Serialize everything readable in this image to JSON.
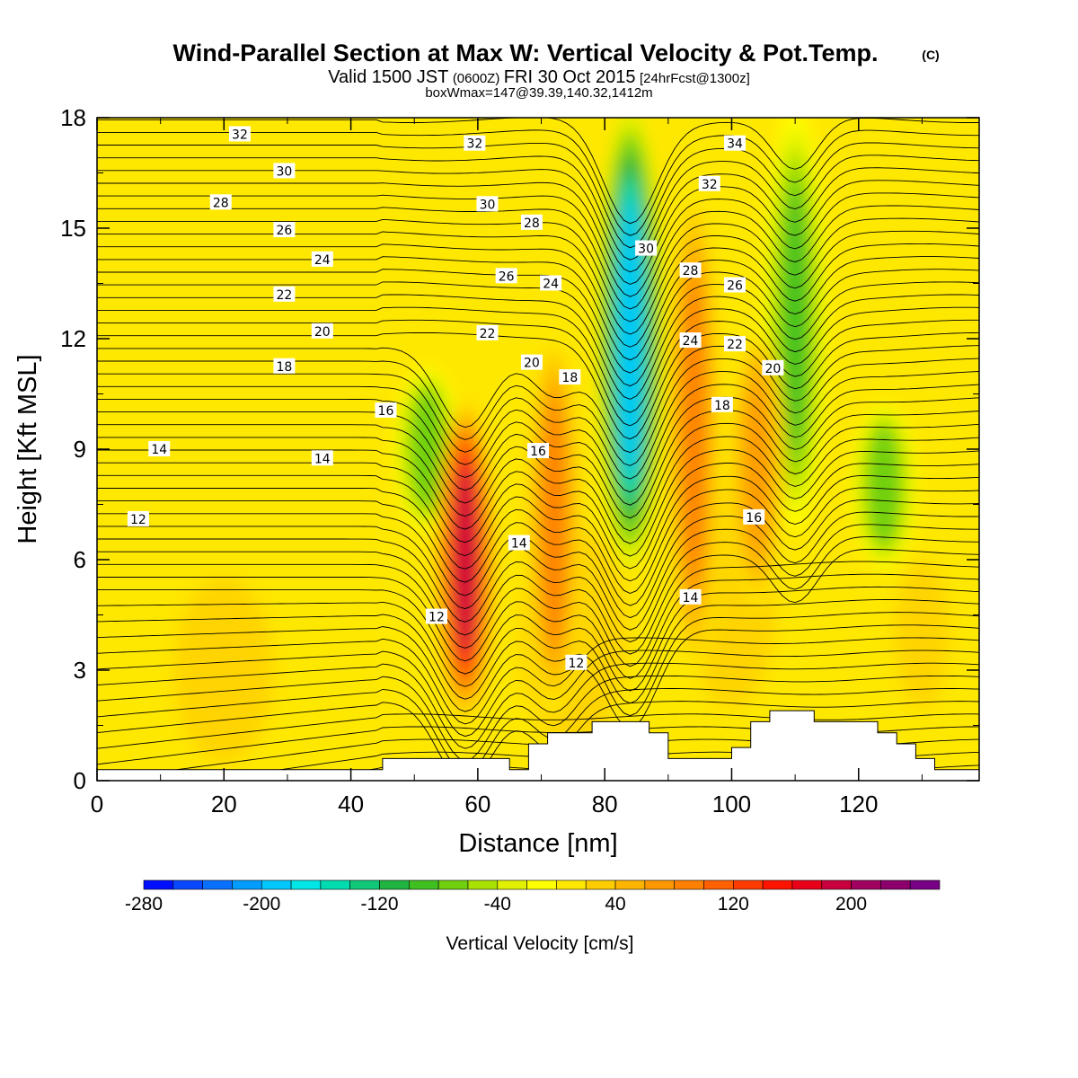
{
  "header": {
    "title": "Wind-Parallel Section at Max W: Vertical Velocity & Pot.Temp.",
    "copyright": "(C)",
    "valid_prefix": "Valid 1500 JST",
    "valid_zulu": "(0600Z)",
    "valid_date": "FRI 30 Oct 2015",
    "forecast": "[24hrFcst@1300z]",
    "box_info": "boxWmax=147@39.39,140.32,1412m"
  },
  "chart_data": {
    "type": "heatmap",
    "title": "Wind-Parallel Section at Max W: Vertical Velocity & Pot.Temp.",
    "xlabel": "Distance [nm]",
    "ylabel": "Height [Kft MSL]",
    "xlim": [
      0,
      139
    ],
    "ylim": [
      0,
      18
    ],
    "x_ticks": [
      "0",
      "20",
      "40",
      "60",
      "80",
      "100",
      "120"
    ],
    "x_tick_values": [
      0,
      20,
      40,
      60,
      80,
      100,
      120
    ],
    "y_ticks": [
      "0",
      "3",
      "6",
      "9",
      "12",
      "15",
      "18"
    ],
    "y_tick_values": [
      0,
      3,
      6,
      9,
      12,
      15,
      18
    ],
    "colorbar": {
      "label": "Vertical Velocity [cm/s]",
      "min": -280,
      "max": 260,
      "step": 20,
      "tick_labels": [
        "-280",
        "-200",
        "-120",
        "-40",
        "40",
        "120",
        "200"
      ],
      "tick_values": [
        -280,
        -200,
        -120,
        -40,
        40,
        120,
        200
      ],
      "colors": [
        "#0010ff",
        "#0848ff",
        "#0a70ff",
        "#009cff",
        "#00c8ff",
        "#00e6e6",
        "#00dcb0",
        "#10c878",
        "#20b440",
        "#40c020",
        "#70d010",
        "#a8e000",
        "#e0f000",
        "#ffff00",
        "#ffe800",
        "#ffcc00",
        "#ffb400",
        "#ff9800",
        "#ff8000",
        "#ff6000",
        "#ff3c00",
        "#ff1400",
        "#e80018",
        "#c8003c",
        "#a00060",
        "#8c006c",
        "#780084"
      ]
    },
    "fields": {
      "shaded": "Vertical Velocity [cm/s]",
      "contours": "Potential Temperature"
    },
    "updraft_cores": [
      {
        "x": 58,
        "z_range": [
          2,
          10
        ],
        "max": 180
      },
      {
        "x": 72,
        "z_range": [
          2,
          12
        ],
        "max": 80
      },
      {
        "x": 94,
        "z_range": [
          3,
          16
        ],
        "max": 80
      },
      {
        "x": 104,
        "z_range": [
          5,
          12
        ],
        "max": 70
      }
    ],
    "downdraft_cores": [
      {
        "x": 52,
        "z_range": [
          7,
          11
        ],
        "min": -80
      },
      {
        "x": 84,
        "z_range": [
          6,
          18
        ],
        "min": -200
      },
      {
        "x": 110,
        "z_range": [
          7,
          18
        ],
        "min": -100
      },
      {
        "x": 124,
        "z_range": [
          6,
          10
        ],
        "min": -80
      }
    ],
    "contour_labels": [
      {
        "text": "32",
        "x": 22.5,
        "y": 17.55
      },
      {
        "text": "30",
        "x": 29.5,
        "y": 16.55
      },
      {
        "text": "28",
        "x": 19.5,
        "y": 15.7
      },
      {
        "text": "26",
        "x": 29.5,
        "y": 14.95
      },
      {
        "text": "24",
        "x": 35.5,
        "y": 14.15
      },
      {
        "text": "22",
        "x": 29.5,
        "y": 13.2
      },
      {
        "text": "20",
        "x": 35.5,
        "y": 12.2
      },
      {
        "text": "18",
        "x": 29.5,
        "y": 11.25
      },
      {
        "text": "16",
        "x": 45.5,
        "y": 10.05
      },
      {
        "text": "14",
        "x": 9.8,
        "y": 9.0
      },
      {
        "text": "14",
        "x": 35.5,
        "y": 8.75
      },
      {
        "text": "12",
        "x": 6.5,
        "y": 7.1
      },
      {
        "text": "32",
        "x": 59.5,
        "y": 17.3
      },
      {
        "text": "30",
        "x": 61.5,
        "y": 15.65
      },
      {
        "text": "28",
        "x": 68.5,
        "y": 15.15
      },
      {
        "text": "26",
        "x": 64.5,
        "y": 13.7
      },
      {
        "text": "24",
        "x": 71.5,
        "y": 13.5
      },
      {
        "text": "22",
        "x": 61.5,
        "y": 12.15
      },
      {
        "text": "20",
        "x": 68.5,
        "y": 11.35
      },
      {
        "text": "18",
        "x": 74.5,
        "y": 10.95
      },
      {
        "text": "16",
        "x": 69.5,
        "y": 8.95
      },
      {
        "text": "14",
        "x": 66.5,
        "y": 6.45
      },
      {
        "text": "12",
        "x": 53.5,
        "y": 4.45
      },
      {
        "text": "12",
        "x": 75.5,
        "y": 3.2
      },
      {
        "text": "30",
        "x": 86.5,
        "y": 14.45
      },
      {
        "text": "34",
        "x": 100.5,
        "y": 17.3
      },
      {
        "text": "32",
        "x": 96.5,
        "y": 16.2
      },
      {
        "text": "28",
        "x": 93.5,
        "y": 13.85
      },
      {
        "text": "26",
        "x": 100.5,
        "y": 13.45
      },
      {
        "text": "24",
        "x": 93.5,
        "y": 11.95
      },
      {
        "text": "22",
        "x": 100.5,
        "y": 11.85
      },
      {
        "text": "20",
        "x": 106.5,
        "y": 11.2
      },
      {
        "text": "18",
        "x": 98.5,
        "y": 10.2
      },
      {
        "text": "16",
        "x": 103.5,
        "y": 7.15
      },
      {
        "text": "14",
        "x": 93.5,
        "y": 4.98
      }
    ],
    "terrain": [
      [
        0,
        0.3
      ],
      [
        45,
        0.3
      ],
      [
        45,
        0.6
      ],
      [
        65,
        0.6
      ],
      [
        65,
        0.3
      ],
      [
        68,
        0.3
      ],
      [
        68,
        1.0
      ],
      [
        71,
        1.0
      ],
      [
        71,
        1.3
      ],
      [
        78,
        1.3
      ],
      [
        78,
        1.6
      ],
      [
        87,
        1.6
      ],
      [
        87,
        1.3
      ],
      [
        90,
        1.3
      ],
      [
        90,
        0.6
      ],
      [
        100,
        0.6
      ],
      [
        100,
        0.9
      ],
      [
        103,
        0.9
      ],
      [
        103,
        1.6
      ],
      [
        106,
        1.6
      ],
      [
        106,
        1.9
      ],
      [
        113,
        1.9
      ],
      [
        113,
        1.6
      ],
      [
        123,
        1.6
      ],
      [
        123,
        1.3
      ],
      [
        126,
        1.3
      ],
      [
        126,
        1.0
      ],
      [
        129,
        1.0
      ],
      [
        129,
        0.6
      ],
      [
        132,
        0.6
      ],
      [
        132,
        0.3
      ],
      [
        139,
        0.3
      ]
    ]
  }
}
